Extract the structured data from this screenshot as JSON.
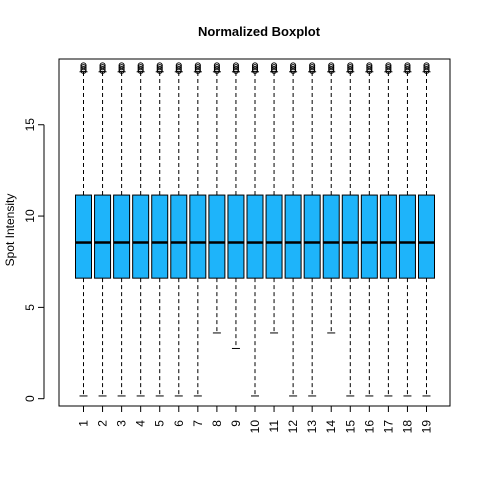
{
  "chart_data": {
    "type": "boxplot",
    "title": "Normalized Boxplot",
    "xlabel": "",
    "ylabel": "Spot Intensity",
    "ylim": [
      -0.4,
      18.6
    ],
    "yticks": [
      0,
      5,
      10,
      15
    ],
    "categories": [
      "1",
      "2",
      "3",
      "4",
      "5",
      "6",
      "7",
      "8",
      "9",
      "10",
      "11",
      "12",
      "13",
      "14",
      "15",
      "16",
      "17",
      "18",
      "19"
    ],
    "box_color": "#1EB4FA",
    "grid": false,
    "legend": "none",
    "boxes": [
      {
        "min": 0.15,
        "q1": 6.6,
        "median": 8.55,
        "q3": 11.15,
        "max": 17.9,
        "outliers": [
          17.95,
          18.05,
          18.15,
          18.25
        ]
      },
      {
        "min": 0.15,
        "q1": 6.6,
        "median": 8.55,
        "q3": 11.15,
        "max": 17.9,
        "outliers": [
          17.95,
          18.05,
          18.15,
          18.25
        ]
      },
      {
        "min": 0.15,
        "q1": 6.6,
        "median": 8.55,
        "q3": 11.15,
        "max": 17.9,
        "outliers": [
          17.95,
          18.05,
          18.15,
          18.25
        ]
      },
      {
        "min": 0.15,
        "q1": 6.6,
        "median": 8.55,
        "q3": 11.15,
        "max": 17.9,
        "outliers": [
          17.95,
          18.05,
          18.15,
          18.25
        ]
      },
      {
        "min": 0.15,
        "q1": 6.6,
        "median": 8.55,
        "q3": 11.15,
        "max": 17.9,
        "outliers": [
          17.95,
          18.05,
          18.15,
          18.25
        ]
      },
      {
        "min": 0.15,
        "q1": 6.6,
        "median": 8.55,
        "q3": 11.15,
        "max": 17.9,
        "outliers": [
          17.95,
          18.05,
          18.15,
          18.25
        ]
      },
      {
        "min": 0.15,
        "q1": 6.6,
        "median": 8.55,
        "q3": 11.15,
        "max": 17.9,
        "outliers": [
          17.95,
          18.05,
          18.15,
          18.25
        ]
      },
      {
        "min": 3.6,
        "q1": 6.6,
        "median": 8.55,
        "q3": 11.15,
        "max": 17.9,
        "outliers": [
          17.95,
          18.05,
          18.15,
          18.25
        ]
      },
      {
        "min": 2.75,
        "q1": 6.6,
        "median": 8.55,
        "q3": 11.15,
        "max": 17.9,
        "outliers": [
          17.95,
          18.05,
          18.15,
          18.25
        ]
      },
      {
        "min": 0.15,
        "q1": 6.6,
        "median": 8.55,
        "q3": 11.15,
        "max": 17.9,
        "outliers": [
          17.95,
          18.05,
          18.15,
          18.25
        ]
      },
      {
        "min": 3.6,
        "q1": 6.6,
        "median": 8.55,
        "q3": 11.15,
        "max": 17.9,
        "outliers": [
          17.95,
          18.05,
          18.15,
          18.25
        ]
      },
      {
        "min": 0.15,
        "q1": 6.6,
        "median": 8.55,
        "q3": 11.15,
        "max": 17.9,
        "outliers": [
          17.95,
          18.05,
          18.15,
          18.25
        ]
      },
      {
        "min": 0.15,
        "q1": 6.6,
        "median": 8.55,
        "q3": 11.15,
        "max": 17.9,
        "outliers": [
          17.95,
          18.05,
          18.15,
          18.25
        ]
      },
      {
        "min": 3.6,
        "q1": 6.6,
        "median": 8.55,
        "q3": 11.15,
        "max": 17.9,
        "outliers": [
          17.95,
          18.05,
          18.15,
          18.25
        ]
      },
      {
        "min": 0.15,
        "q1": 6.6,
        "median": 8.55,
        "q3": 11.15,
        "max": 17.9,
        "outliers": [
          17.95,
          18.05,
          18.15,
          18.25
        ]
      },
      {
        "min": 0.15,
        "q1": 6.6,
        "median": 8.55,
        "q3": 11.15,
        "max": 17.9,
        "outliers": [
          17.95,
          18.05,
          18.15,
          18.25
        ]
      },
      {
        "min": 0.15,
        "q1": 6.6,
        "median": 8.55,
        "q3": 11.15,
        "max": 17.9,
        "outliers": [
          17.95,
          18.05,
          18.15,
          18.25
        ]
      },
      {
        "min": 0.15,
        "q1": 6.6,
        "median": 8.55,
        "q3": 11.15,
        "max": 17.9,
        "outliers": [
          17.95,
          18.05,
          18.15,
          18.25
        ]
      },
      {
        "min": 0.15,
        "q1": 6.6,
        "median": 8.55,
        "q3": 11.15,
        "max": 17.9,
        "outliers": [
          17.95,
          18.05,
          18.15,
          18.25
        ]
      }
    ]
  }
}
